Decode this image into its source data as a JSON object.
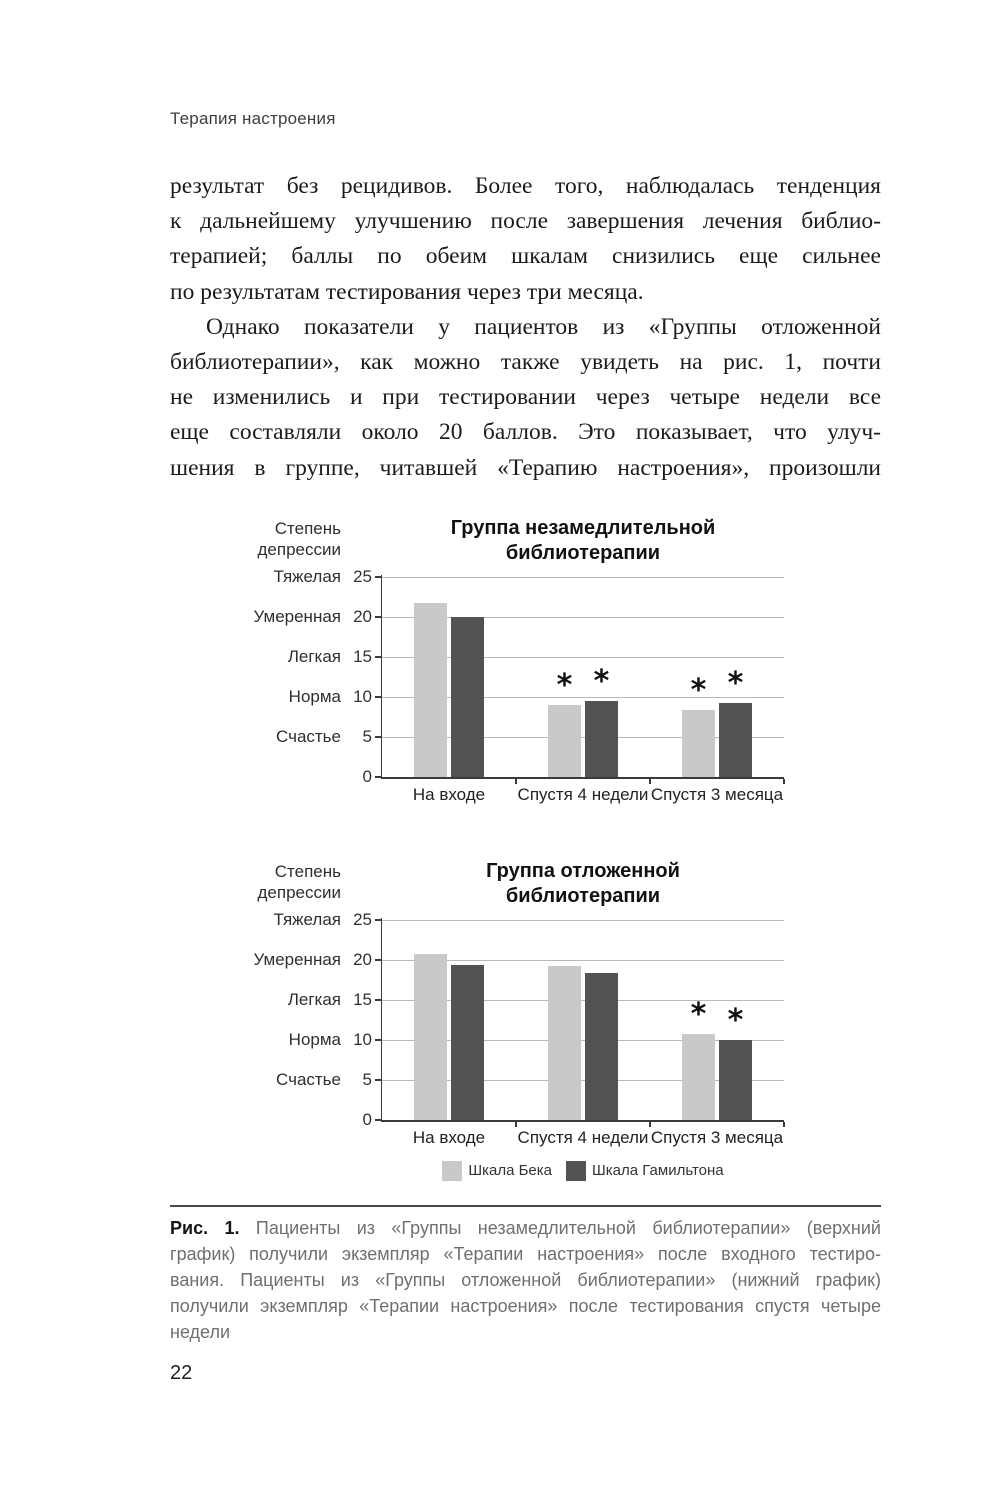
{
  "page": {
    "running_head": "Терапия настроения",
    "page_number": "22"
  },
  "paragraphs": [
    {
      "lines": [
        "результат без рецидивов. Более того, наблюдалась тенденция",
        "к дальнейшему улучшению после завершения лечения библио-",
        "терапией; баллы по обеим шкалам снизились еще сильнее",
        "по результатам тестирования через три месяца."
      ]
    },
    {
      "lines": [
        "Однако показатели у пациентов из «Группы отложенной",
        "библиотерапии», как можно также увидеть на рис. 1, почти",
        "не изменились и при тестировании через четыре недели все",
        "еще составляли около 20 баллов. Это показывает, что улуч-",
        "шения в группе, читавшей «Терапию настроения», произошли"
      ]
    }
  ],
  "figure": {
    "caption_label": "Рис. 1.",
    "caption_lines": [
      "Пациенты из «Группы незамедлительной библиотерапии» (верхний",
      "график) получили экземпляр «Терапии настроения» после входного тестиро-",
      "вания. Пациенты из «Группы отложенной библиотерапии» (нижний график)",
      "получили экземпляр «Терапии настроения» после тестирования спустя четыре",
      "недели"
    ]
  },
  "colors": {
    "beck_bar": "#c9c9c9",
    "hamilton_bar": "#535353",
    "gridline": "#b9b9b9",
    "axis": "#3a3a3a"
  },
  "chart_data": [
    {
      "type": "bar",
      "title": "Группа незамедлительной библиотерапии",
      "title_lines": [
        "Группа незамедлительной",
        "библиотерапии"
      ],
      "y_axis_label": "Степень депрессии",
      "y_axis_label_lines": [
        "Степень",
        "депрессии"
      ],
      "ylim": [
        0,
        25
      ],
      "grid": true,
      "y_ticks": [
        {
          "value": 25,
          "label": "Тяжелая"
        },
        {
          "value": 20,
          "label": "Умеренная"
        },
        {
          "value": 15,
          "label": "Легкая"
        },
        {
          "value": 10,
          "label": "Норма"
        },
        {
          "value": 5,
          "label": "Счастье"
        },
        {
          "value": 0,
          "label": ""
        }
      ],
      "categories": [
        "На входе",
        "Спустя 4 недели",
        "Спустя 3 месяца"
      ],
      "series": [
        {
          "name": "Шкала Бека",
          "color": "#c9c9c9",
          "values": [
            21.8,
            9.0,
            8.4
          ],
          "significant": [
            false,
            true,
            true
          ]
        },
        {
          "name": "Шкала Гамильтона",
          "color": "#535353",
          "values": [
            20.0,
            9.5,
            9.2
          ],
          "significant": [
            false,
            true,
            true
          ]
        }
      ],
      "significance_marker": "*",
      "show_legend": false,
      "legend_position": "none"
    },
    {
      "type": "bar",
      "title": "Группа отложенной библиотерапии",
      "title_lines": [
        "Группа отложенной",
        "библиотерапии"
      ],
      "y_axis_label": "Степень депрессии",
      "y_axis_label_lines": [
        "Степень",
        "депрессии"
      ],
      "ylim": [
        0,
        25
      ],
      "grid": true,
      "y_ticks": [
        {
          "value": 25,
          "label": "Тяжелая"
        },
        {
          "value": 20,
          "label": "Умеренная"
        },
        {
          "value": 15,
          "label": "Легкая"
        },
        {
          "value": 10,
          "label": "Норма"
        },
        {
          "value": 5,
          "label": "Счастье"
        },
        {
          "value": 0,
          "label": ""
        }
      ],
      "categories": [
        "На входе",
        "Спустя 4 недели",
        "Спустя 3 месяца"
      ],
      "series": [
        {
          "name": "Шкала Бека",
          "color": "#c9c9c9",
          "values": [
            20.8,
            19.3,
            10.8
          ],
          "significant": [
            false,
            false,
            true
          ]
        },
        {
          "name": "Шкала Гамильтона",
          "color": "#535353",
          "values": [
            19.4,
            18.4,
            10.0
          ],
          "significant": [
            false,
            false,
            true
          ]
        }
      ],
      "significance_marker": "*",
      "show_legend": true,
      "legend_position": "bottom-center"
    }
  ]
}
